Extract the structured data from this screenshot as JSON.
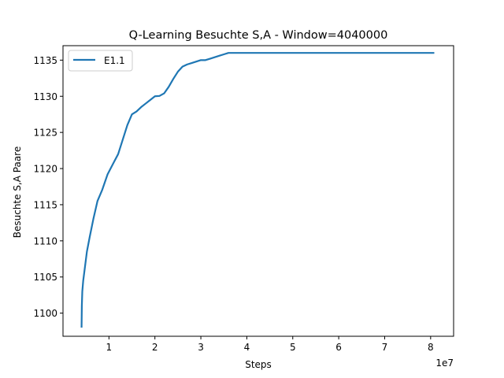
{
  "chart_data": {
    "type": "line",
    "title": "Q-Learning Besuchte S,A - Window=4040000",
    "xlabel": "Steps",
    "ylabel": "Besuchte S,A Paare",
    "x_offset_label": "1e7",
    "xlim": [
      0,
      8.5
    ],
    "ylim": [
      1096.8,
      1137.0
    ],
    "x_ticks": [
      1,
      2,
      3,
      4,
      5,
      6,
      7,
      8
    ],
    "y_ticks": [
      1100,
      1105,
      1110,
      1115,
      1120,
      1125,
      1130,
      1135
    ],
    "legend_position": "upper-left",
    "grid": false,
    "series": [
      {
        "name": "E1.1",
        "color": "#1f77b4",
        "x": [
          0.404,
          0.41,
          0.42,
          0.44,
          0.47,
          0.52,
          0.58,
          0.66,
          0.75,
          0.85,
          0.97,
          1.1,
          1.2,
          1.3,
          1.4,
          1.5,
          1.6,
          1.7,
          1.8,
          1.9,
          2.0,
          2.1,
          2.2,
          2.3,
          2.4,
          2.5,
          2.6,
          2.7,
          2.8,
          2.9,
          3.0,
          3.1,
          3.2,
          3.3,
          3.4,
          3.5,
          3.6,
          4.0,
          5.0,
          6.0,
          7.0,
          8.0,
          8.08
        ],
        "y": [
          1098.0,
          1101.0,
          1103.0,
          1104.5,
          1106.0,
          1108.5,
          1110.5,
          1113.0,
          1115.5,
          1117.0,
          1119.2,
          1120.8,
          1122.0,
          1124.0,
          1126.0,
          1127.5,
          1127.9,
          1128.5,
          1129.0,
          1129.5,
          1130.0,
          1130.05,
          1130.4,
          1131.3,
          1132.4,
          1133.4,
          1134.1,
          1134.4,
          1134.6,
          1134.8,
          1135.0,
          1135.0,
          1135.2,
          1135.4,
          1135.6,
          1135.8,
          1136.0,
          1136.0,
          1136.0,
          1136.0,
          1136.0,
          1136.0,
          1136.0
        ]
      }
    ]
  }
}
